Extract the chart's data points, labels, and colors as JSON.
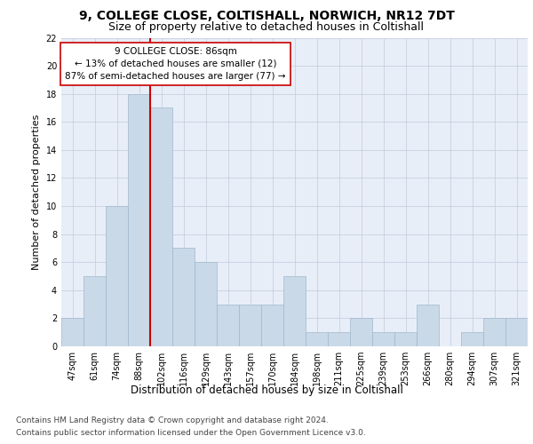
{
  "title1": "9, COLLEGE CLOSE, COLTISHALL, NORWICH, NR12 7DT",
  "title2": "Size of property relative to detached houses in Coltishall",
  "xlabel": "Distribution of detached houses by size in Coltishall",
  "ylabel": "Number of detached properties",
  "categories": [
    "47sqm",
    "61sqm",
    "74sqm",
    "88sqm",
    "102sqm",
    "116sqm",
    "129sqm",
    "143sqm",
    "157sqm",
    "170sqm",
    "184sqm",
    "198sqm",
    "211sqm",
    "225sqm",
    "239sqm",
    "253sqm",
    "266sqm",
    "280sqm",
    "294sqm",
    "307sqm",
    "321sqm"
  ],
  "values": [
    2,
    5,
    10,
    18,
    17,
    7,
    6,
    3,
    3,
    3,
    5,
    1,
    1,
    2,
    1,
    1,
    3,
    0,
    1,
    2,
    2
  ],
  "bar_color": "#c9d9e8",
  "bar_edge_color": "#a0b8cc",
  "vline_x": 3.5,
  "vline_color": "#cc0000",
  "annotation_text": "9 COLLEGE CLOSE: 86sqm\n← 13% of detached houses are smaller (12)\n87% of semi-detached houses are larger (77) →",
  "annotation_box_color": "#ffffff",
  "annotation_box_edge": "#cc0000",
  "ylim": [
    0,
    22
  ],
  "yticks": [
    0,
    2,
    4,
    6,
    8,
    10,
    12,
    14,
    16,
    18,
    20,
    22
  ],
  "grid_color": "#c8d0e0",
  "bg_color": "#e8eef8",
  "footer1": "Contains HM Land Registry data © Crown copyright and database right 2024.",
  "footer2": "Contains public sector information licensed under the Open Government Licence v3.0.",
  "title1_fontsize": 10,
  "title2_fontsize": 9,
  "xlabel_fontsize": 8.5,
  "ylabel_fontsize": 8,
  "tick_fontsize": 7,
  "annotation_fontsize": 7.5,
  "footer_fontsize": 6.5
}
